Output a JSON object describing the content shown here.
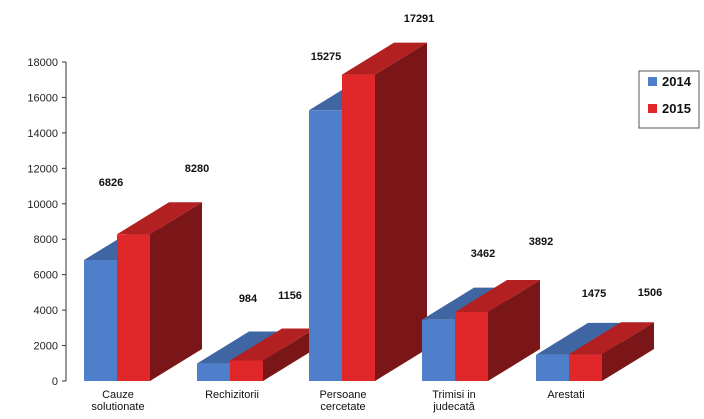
{
  "chart_data": {
    "type": "bar",
    "title": "",
    "xlabel": "",
    "ylabel": "",
    "categories": [
      [
        "Cauze",
        "solutionate"
      ],
      [
        "Rechizitorii"
      ],
      [
        "Persoane",
        "cercetate"
      ],
      [
        "Trimisi in",
        "judecată"
      ],
      [
        "Arestati"
      ]
    ],
    "series": [
      {
        "name": "2014",
        "color": "#4F7FCB",
        "values": [
          6826,
          984,
          15275,
          3462,
          1475
        ]
      },
      {
        "name": "2015",
        "color": "#E0282B",
        "values": [
          8280,
          1156,
          17291,
          3892,
          1506
        ]
      }
    ],
    "ylim": [
      0,
      18000
    ],
    "yticks": [
      0,
      2000,
      4000,
      6000,
      8000,
      10000,
      12000,
      14000,
      16000,
      18000
    ],
    "grid": false,
    "legend_position": "right"
  }
}
